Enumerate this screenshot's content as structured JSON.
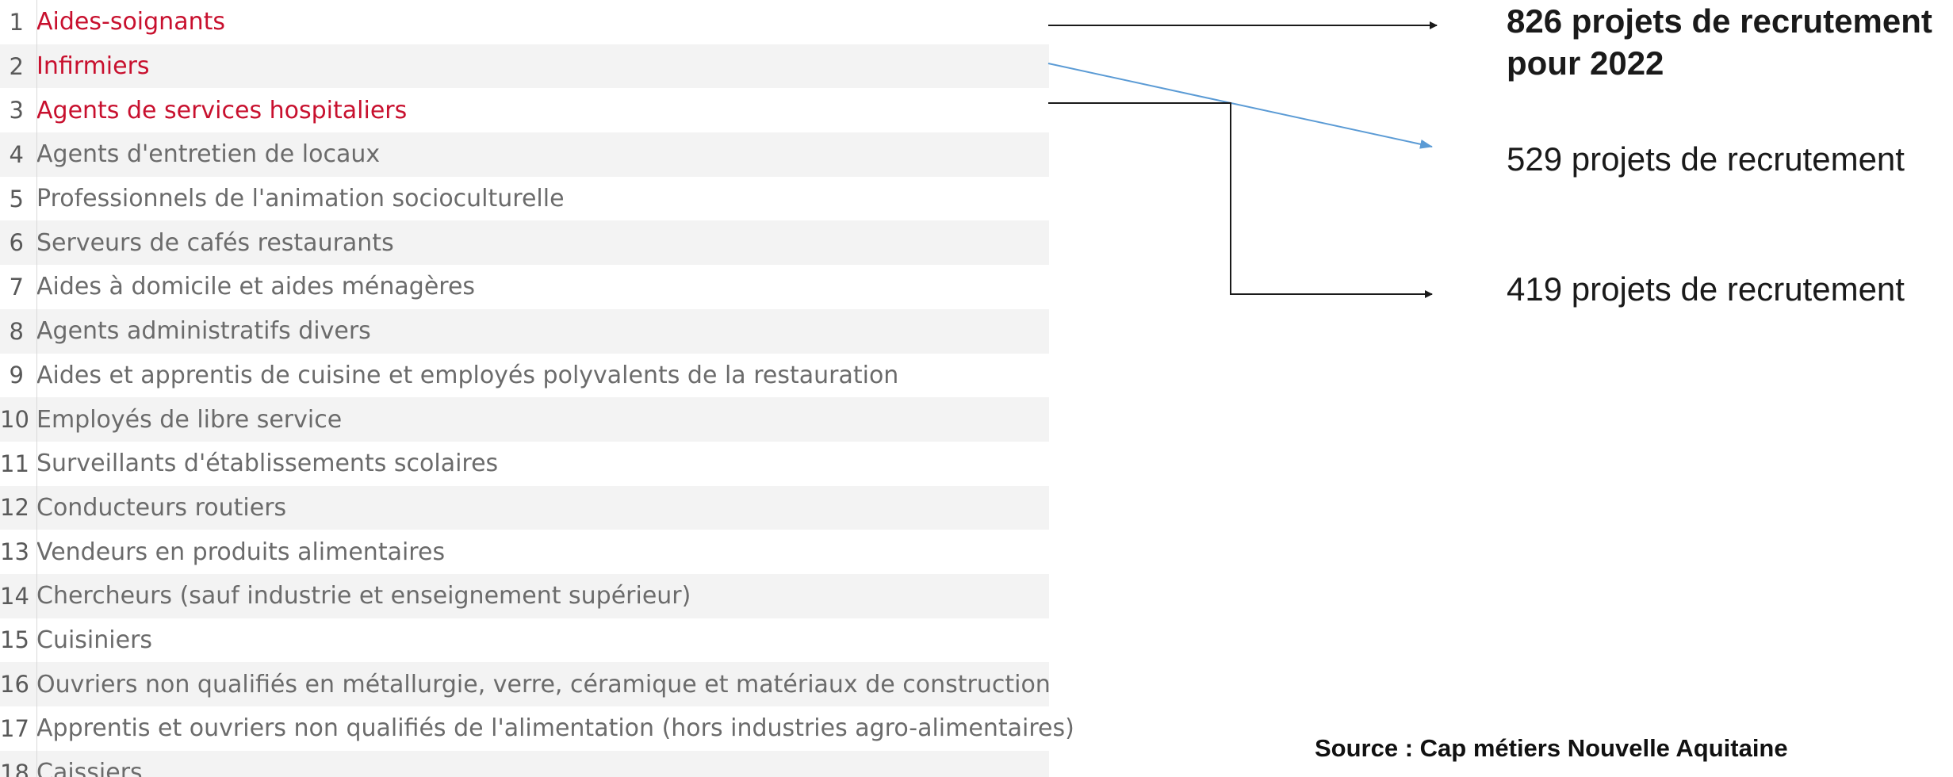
{
  "ranking": {
    "items": [
      {
        "rank": "1",
        "label": "Aides-soignants",
        "highlight": true
      },
      {
        "rank": "2",
        "label": "Infirmiers",
        "highlight": true
      },
      {
        "rank": "3",
        "label": "Agents de services hospitaliers",
        "highlight": true
      },
      {
        "rank": "4",
        "label": "Agents d'entretien de locaux",
        "highlight": false
      },
      {
        "rank": "5",
        "label": "Professionnels de l'animation socioculturelle",
        "highlight": false
      },
      {
        "rank": "6",
        "label": "Serveurs de cafés restaurants",
        "highlight": false
      },
      {
        "rank": "7",
        "label": "Aides à domicile et aides ménagères",
        "highlight": false
      },
      {
        "rank": "8",
        "label": "Agents administratifs divers",
        "highlight": false
      },
      {
        "rank": "9",
        "label": "Aides et apprentis de cuisine et employés polyvalents de la restauration",
        "highlight": false
      },
      {
        "rank": "10",
        "label": "Employés de libre service",
        "highlight": false
      },
      {
        "rank": "11",
        "label": "Surveillants d'établissements scolaires",
        "highlight": false
      },
      {
        "rank": "12",
        "label": "Conducteurs routiers",
        "highlight": false
      },
      {
        "rank": "13",
        "label": "Vendeurs en produits alimentaires",
        "highlight": false
      },
      {
        "rank": "14",
        "label": "Chercheurs (sauf industrie et enseignement supérieur)",
        "highlight": false
      },
      {
        "rank": "15",
        "label": "Cuisiniers",
        "highlight": false
      },
      {
        "rank": "16",
        "label": "Ouvriers non qualifiés en métallurgie, verre, céramique et matériaux de construction",
        "highlight": false
      },
      {
        "rank": "17",
        "label": "Apprentis et ouvriers non qualifiés de l'alimentation (hors industries agro-alimentaires)",
        "highlight": false
      },
      {
        "rank": "18",
        "label": "Caissiers",
        "highlight": false
      }
    ]
  },
  "callouts": {
    "first_line1": "826 projets de recrutement",
    "first_line2": "pour 2022",
    "second": "529 projets de recrutement",
    "third": "419 projets de recrutement"
  },
  "source": "Source : Cap métiers Nouvelle Aquitaine",
  "colors": {
    "highlight": "#c8102e",
    "row_shade": "#f3f3f3",
    "text_muted": "#6b6b6b",
    "arrow_dark": "#1a1a1a",
    "arrow_blue": "#5b9bd5"
  }
}
